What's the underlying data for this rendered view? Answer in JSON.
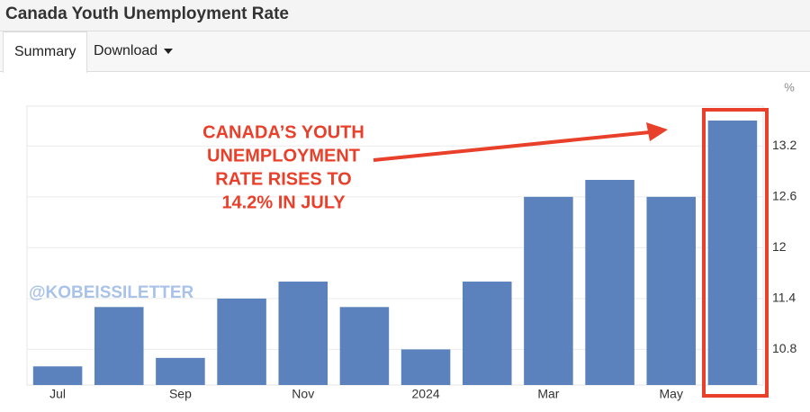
{
  "header": {
    "title": "Canada Youth Unemployment Rate"
  },
  "tabs": [
    "Summary",
    "Download"
  ],
  "chart_data": {
    "type": "bar",
    "unit": "%",
    "categories": [
      "Jul",
      null,
      "Sep",
      null,
      "Nov",
      null,
      "2024",
      null,
      "Mar",
      null,
      "May",
      null
    ],
    "values": [
      10.6,
      11.3,
      10.7,
      11.4,
      11.6,
      11.3,
      10.8,
      11.6,
      12.6,
      12.8,
      12.6,
      13.5
    ],
    "color": "#5b82bc",
    "ylim": [
      10.38,
      13.67
    ],
    "yticks": [
      10.8,
      11.4,
      12.0,
      12.6,
      13.2
    ],
    "grid": true,
    "annotation": [
      "CANADA’S YOUTH",
      "UNEMPLOYMENT",
      "RATE RISES TO",
      "14.2% IN JULY"
    ],
    "watermark": "@KOBEISSILETTER"
  }
}
